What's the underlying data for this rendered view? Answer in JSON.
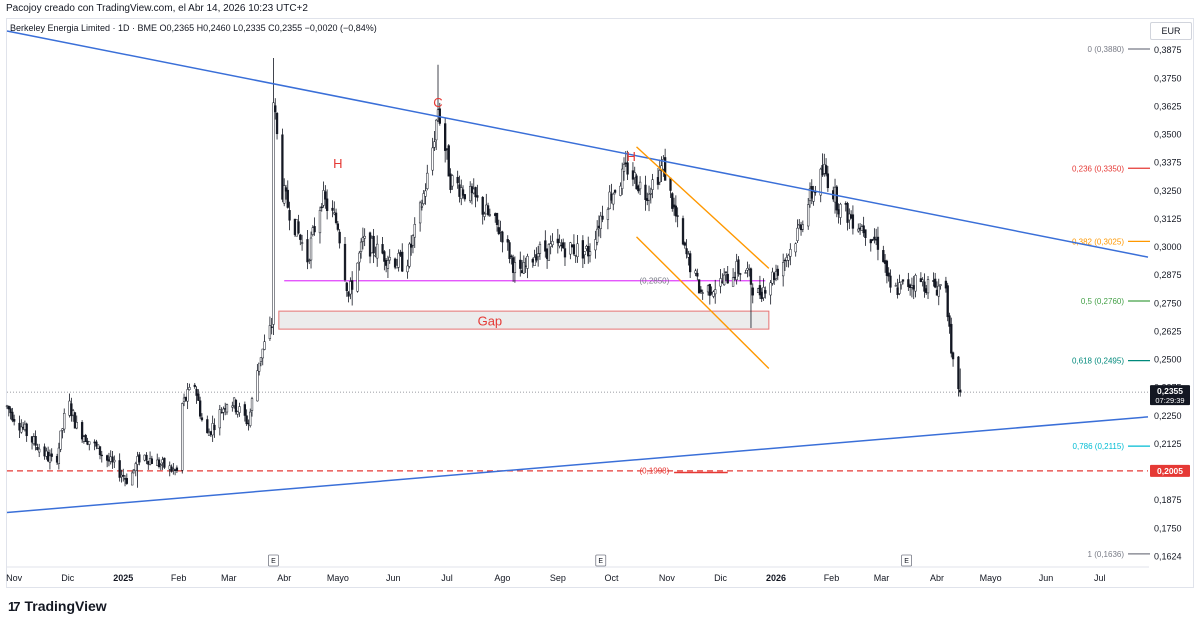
{
  "header": {
    "text": "Pacojoy creado con TradingView.com, el Abr 14, 2026 10:23 UTC+2"
  },
  "legend": {
    "text": "Berkeley Energia Limited · 1D · BME  O0,2365  H0,2460  L0,2335  C0,2355  −0,0020 (−0,84%)"
  },
  "currency": "EUR",
  "logo": {
    "mark": "17",
    "text": "TradingView"
  },
  "colors": {
    "candle": "#131722",
    "trendline": "#3a6fd8",
    "channel": "#ff9800",
    "neckline": "#e040fb",
    "gap_border": "#e57373",
    "gap_fill": "#ececec",
    "support": "#e53935",
    "fib_0": "#787b86",
    "fib_0236": "#e53935",
    "fib_0382": "#ff9800",
    "fib_05": "#43a047",
    "fib_0618": "#00897b",
    "fib_0786": "#00bcd4",
    "fib_1": "#787b86"
  },
  "chart_data": {
    "type": "candlestick",
    "currency": "EUR",
    "price_axis": {
      "ticks": [
        "0,3875",
        "0,3750",
        "0,3625",
        "0,3500",
        "0,3375",
        "0,3250",
        "0,3125",
        "0,3000",
        "0,2875",
        "0,2750",
        "0,2625",
        "0,2500",
        "0,2375",
        "0,2250",
        "0,2125",
        "0,2000",
        "0,1875",
        "0,1750",
        "0,1624"
      ],
      "range": [
        0.16,
        0.392
      ]
    },
    "time_axis": {
      "ticks": [
        "Nov",
        "Dic",
        "2025",
        "Feb",
        "Mar",
        "Abr",
        "Mayo",
        "Jun",
        "Jul",
        "Ago",
        "Sep",
        "Oct",
        "Nov",
        "Dic",
        "2026",
        "Feb",
        "Mar",
        "Abr",
        "Mayo",
        "Jun",
        "Jul"
      ],
      "bold_ticks": [
        "2025",
        "2026"
      ],
      "range": [
        "2024-10-28",
        "2026-07-28"
      ]
    },
    "last_price": {
      "value": 0.2355,
      "label": "0,2355",
      "countdown": "07:29:39"
    },
    "support_level": {
      "value": 0.2005,
      "label": "0,2005"
    },
    "fibonacci": [
      {
        "ratio": "0",
        "price": 0.388,
        "label": "0 (0,3880)",
        "color": "#787b86"
      },
      {
        "ratio": "0.236",
        "price": 0.335,
        "label": "0,236 (0,3350)",
        "color": "#e53935"
      },
      {
        "ratio": "0.382",
        "price": 0.3025,
        "label": "0,382 (0,3025)",
        "color": "#ff9800"
      },
      {
        "ratio": "0.5",
        "price": 0.276,
        "label": "0,5 (0,2760)",
        "color": "#43a047"
      },
      {
        "ratio": "0.618",
        "price": 0.2495,
        "label": "0,618 (0,2495)",
        "color": "#00897b"
      },
      {
        "ratio": "0.786",
        "price": 0.2115,
        "label": "0,786 (0,2115)",
        "color": "#00bcd4"
      },
      {
        "ratio": "1",
        "price": 0.1636,
        "label": "1 (0,1636)",
        "color": "#787b86"
      }
    ],
    "annotations": [
      {
        "text": "H",
        "date": "2025-05-01",
        "price": 0.337,
        "color": "#e53935"
      },
      {
        "text": "C",
        "date": "2025-06-26",
        "price": 0.364,
        "color": "#e53935"
      },
      {
        "text": "H",
        "date": "2025-10-12",
        "price": 0.34,
        "color": "#e53935"
      },
      {
        "text": "Gap",
        "date": "2025-07-25",
        "price": 0.267,
        "color": "#e53935"
      },
      {
        "text": "(0,2850)",
        "date": "2025-10-25",
        "price": 0.2855,
        "color": "#787b86"
      },
      {
        "text": "(0,1998)",
        "date": "2025-10-25",
        "price": 0.2012,
        "color": "#e53935"
      }
    ],
    "earnings_markers": [
      {
        "label": "E",
        "date": "2025-03-26"
      },
      {
        "label": "E",
        "date": "2025-09-25"
      },
      {
        "label": "E",
        "date": "2026-03-15"
      }
    ],
    "drawings": {
      "upper_trendline": {
        "from": [
          "2024-10-28",
          0.396
        ],
        "to": [
          "2026-07-28",
          0.2955
        ]
      },
      "lower_trendline": {
        "from": [
          "2024-10-28",
          0.182
        ],
        "to": [
          "2026-07-28",
          0.2245
        ]
      },
      "neckline": {
        "price": 0.285,
        "from": "2025-04-01",
        "to": "2025-12-26"
      },
      "gap_zone": {
        "from": "2025-03-29",
        "to": "2025-12-28",
        "top": 0.2715,
        "bottom": 0.2635
      },
      "channel_upper": {
        "from": [
          "2025-10-15",
          0.3445
        ],
        "to": [
          "2025-12-28",
          0.2905
        ]
      },
      "channel_lower": {
        "from": [
          "2025-10-15",
          0.3045
        ],
        "to": [
          "2025-12-28",
          0.246
        ]
      },
      "support_dashed": {
        "price": 0.2005,
        "from": "2024-10-28",
        "to": "2026-07-28"
      },
      "support_segment": {
        "price": 0.1998,
        "from": "2025-11-05",
        "to": "2025-12-05"
      }
    },
    "anchors": [
      [
        "2024-10-28",
        0.229
      ],
      [
        "2024-11-10",
        0.215
      ],
      [
        "2024-11-24",
        0.203
      ],
      [
        "2024-12-01",
        0.232
      ],
      [
        "2024-12-06",
        0.22
      ],
      [
        "2024-12-20",
        0.208
      ],
      [
        "2025-01-04",
        0.196
      ],
      [
        "2025-01-11",
        0.208
      ],
      [
        "2025-01-20",
        0.204
      ],
      [
        "2025-01-31",
        0.2
      ],
      [
        "2025-02-03",
        0.23
      ],
      [
        "2025-02-10",
        0.239
      ],
      [
        "2025-02-16",
        0.215
      ],
      [
        "2025-03-01",
        0.233
      ],
      [
        "2025-03-12",
        0.222
      ],
      [
        "2025-03-18",
        0.25
      ],
      [
        "2025-03-25",
        0.265
      ],
      [
        "2025-03-26",
        0.365
      ],
      [
        "2025-03-31",
        0.325
      ],
      [
        "2025-04-06",
        0.312
      ],
      [
        "2025-04-14",
        0.295
      ],
      [
        "2025-04-22",
        0.322
      ],
      [
        "2025-05-01",
        0.31
      ],
      [
        "2025-05-07",
        0.278
      ],
      [
        "2025-05-15",
        0.302
      ],
      [
        "2025-05-28",
        0.296
      ],
      [
        "2025-06-08",
        0.292
      ],
      [
        "2025-06-15",
        0.312
      ],
      [
        "2025-06-22",
        0.338
      ],
      [
        "2025-06-26",
        0.362
      ],
      [
        "2025-07-03",
        0.33
      ],
      [
        "2025-07-18",
        0.32
      ],
      [
        "2025-08-01",
        0.306
      ],
      [
        "2025-08-10",
        0.286
      ],
      [
        "2025-08-20",
        0.298
      ],
      [
        "2025-09-03",
        0.3
      ],
      [
        "2025-09-18",
        0.298
      ],
      [
        "2025-09-28",
        0.32
      ],
      [
        "2025-10-10",
        0.335
      ],
      [
        "2025-10-20",
        0.324
      ],
      [
        "2025-10-30",
        0.336
      ],
      [
        "2025-11-10",
        0.3
      ],
      [
        "2025-11-20",
        0.28
      ],
      [
        "2025-12-01",
        0.284
      ],
      [
        "2025-12-10",
        0.29
      ],
      [
        "2025-12-16",
        0.289
      ],
      [
        "2025-12-21",
        0.278
      ],
      [
        "2025-12-31",
        0.288
      ],
      [
        "2026-01-10",
        0.3
      ],
      [
        "2026-01-20",
        0.322
      ],
      [
        "2026-01-28",
        0.334
      ],
      [
        "2026-02-06",
        0.317
      ],
      [
        "2026-02-20",
        0.308
      ],
      [
        "2026-03-01",
        0.3
      ],
      [
        "2026-03-06",
        0.28
      ],
      [
        "2026-03-20",
        0.285
      ],
      [
        "2026-04-01",
        0.282
      ],
      [
        "2026-04-06",
        0.284
      ],
      [
        "2026-04-09",
        0.25
      ],
      [
        "2026-04-14",
        0.2355
      ]
    ],
    "wicks": [
      {
        "date": "2025-03-26",
        "high": 0.384
      },
      {
        "date": "2025-06-26",
        "high": 0.381
      },
      {
        "date": "2025-12-18",
        "low": 0.264
      },
      {
        "date": "2025-01-09",
        "low": 0.193
      },
      {
        "date": "2025-05-09",
        "low": 0.274
      }
    ]
  }
}
